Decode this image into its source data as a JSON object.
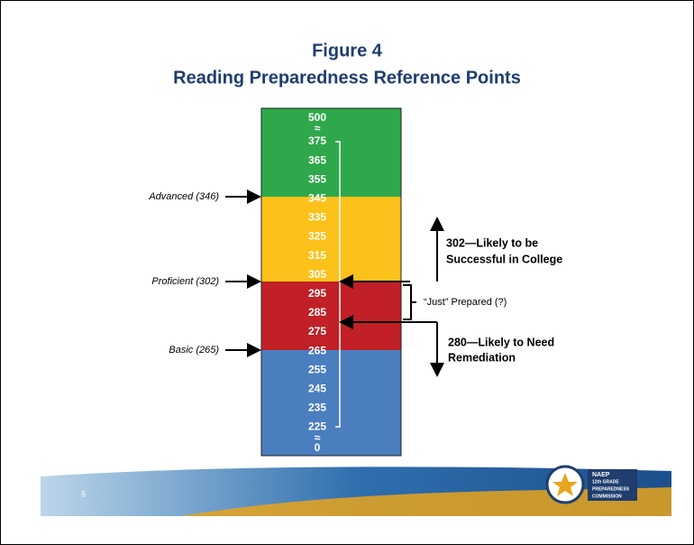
{
  "title": {
    "line1": "Figure 4",
    "line2": "Reading Preparedness Reference Points"
  },
  "scale": [
    500,
    375,
    365,
    355,
    345,
    335,
    325,
    315,
    305,
    295,
    285,
    275,
    265,
    255,
    245,
    235,
    225,
    0
  ],
  "levels": [
    {
      "label": "Advanced (346)"
    },
    {
      "label": "Proficient (302)"
    },
    {
      "label": "Basic (265)"
    }
  ],
  "annotations": {
    "upper": [
      "302—Likely to be",
      "Successful in College"
    ],
    "middle": "“Just” Prepared (?)",
    "lower": [
      "280—Likely to Need",
      "Remediation"
    ]
  },
  "footer": {
    "page": "5",
    "logo": [
      "NAEP",
      "12th GRADE",
      "PREPAREDNESS",
      "COMMISSION"
    ]
  }
}
